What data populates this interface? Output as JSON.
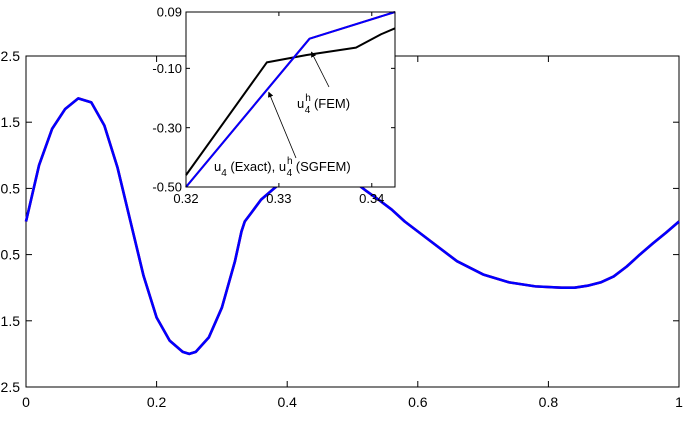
{
  "chart_data": [
    {
      "type": "line",
      "panel": "main",
      "xlim": [
        0,
        1
      ],
      "ylim": [
        -2.5,
        2.5
      ],
      "grid": false,
      "xticks": [
        {
          "value": 0,
          "label": "0"
        },
        {
          "value": 0.2,
          "label": "0.2"
        },
        {
          "value": 0.4,
          "label": "0.4"
        },
        {
          "value": 0.6,
          "label": "0.6"
        },
        {
          "value": 0.8,
          "label": "0.8"
        },
        {
          "value": 1,
          "label": "1"
        }
      ],
      "yticks": [
        {
          "value": 2.5,
          "label": "2.5"
        },
        {
          "value": 1.5,
          "label": "1.5"
        },
        {
          "value": 0.5,
          "label": "0.5"
        },
        {
          "value": -0.5,
          "label": "0.5"
        },
        {
          "value": -1.5,
          "label": "1.5"
        },
        {
          "value": -2.5,
          "label": "2.5"
        }
      ],
      "series": [
        {
          "color": "#ff0000",
          "points": [
            [
              0,
              0
            ],
            [
              0.02,
              0.85
            ],
            [
              0.04,
              1.4
            ],
            [
              0.06,
              1.7
            ],
            [
              0.08,
              1.86
            ],
            [
              0.1,
              1.8
            ],
            [
              0.12,
              1.45
            ],
            [
              0.14,
              0.82
            ],
            [
              0.16,
              0.0
            ],
            [
              0.18,
              -0.82
            ],
            [
              0.2,
              -1.45
            ],
            [
              0.22,
              -1.8
            ],
            [
              0.24,
              -1.97
            ],
            [
              0.25,
              -2.0
            ],
            [
              0.26,
              -1.97
            ],
            [
              0.28,
              -1.75
            ],
            [
              0.3,
              -1.3
            ],
            [
              0.32,
              -0.6
            ],
            [
              0.33,
              -0.15
            ],
            [
              0.335,
              0.0
            ],
            [
              0.345,
              0.13
            ],
            [
              0.36,
              0.33
            ],
            [
              0.38,
              0.5
            ],
            [
              0.4,
              0.66
            ],
            [
              0.42,
              0.8
            ],
            [
              0.44,
              0.83
            ],
            [
              0.46,
              0.8
            ],
            [
              0.48,
              0.72
            ],
            [
              0.5,
              0.62
            ],
            [
              0.52,
              0.47
            ],
            [
              0.54,
              0.33
            ],
            [
              0.56,
              0.18
            ],
            [
              0.58,
              0.0
            ],
            [
              0.62,
              -0.3
            ],
            [
              0.66,
              -0.6
            ],
            [
              0.7,
              -0.8
            ],
            [
              0.74,
              -0.92
            ],
            [
              0.78,
              -0.98
            ],
            [
              0.82,
              -1.0
            ],
            [
              0.84,
              -1.0
            ],
            [
              0.86,
              -0.97
            ],
            [
              0.88,
              -0.92
            ],
            [
              0.9,
              -0.83
            ],
            [
              0.92,
              -0.68
            ],
            [
              0.94,
              -0.5
            ],
            [
              0.96,
              -0.33
            ],
            [
              0.98,
              -0.17
            ],
            [
              1.0,
              0.0
            ]
          ]
        },
        {
          "color": "#0000ff",
          "points": [
            [
              0,
              0
            ],
            [
              0.02,
              0.85
            ],
            [
              0.04,
              1.4
            ],
            [
              0.06,
              1.7
            ],
            [
              0.08,
              1.86
            ],
            [
              0.1,
              1.8
            ],
            [
              0.12,
              1.45
            ],
            [
              0.14,
              0.82
            ],
            [
              0.16,
              0.0
            ],
            [
              0.18,
              -0.82
            ],
            [
              0.2,
              -1.45
            ],
            [
              0.22,
              -1.8
            ],
            [
              0.24,
              -1.97
            ],
            [
              0.25,
              -2.0
            ],
            [
              0.26,
              -1.97
            ],
            [
              0.28,
              -1.75
            ],
            [
              0.3,
              -1.3
            ],
            [
              0.32,
              -0.6
            ],
            [
              0.33,
              -0.15
            ],
            [
              0.335,
              0.0
            ],
            [
              0.345,
              0.13
            ],
            [
              0.36,
              0.33
            ],
            [
              0.38,
              0.5
            ],
            [
              0.4,
              0.66
            ],
            [
              0.42,
              0.8
            ],
            [
              0.44,
              0.83
            ],
            [
              0.46,
              0.8
            ],
            [
              0.48,
              0.72
            ],
            [
              0.5,
              0.62
            ],
            [
              0.52,
              0.47
            ],
            [
              0.54,
              0.33
            ],
            [
              0.56,
              0.18
            ],
            [
              0.58,
              0.0
            ],
            [
              0.62,
              -0.3
            ],
            [
              0.66,
              -0.6
            ],
            [
              0.7,
              -0.8
            ],
            [
              0.74,
              -0.92
            ],
            [
              0.78,
              -0.98
            ],
            [
              0.82,
              -1.0
            ],
            [
              0.84,
              -1.0
            ],
            [
              0.86,
              -0.97
            ],
            [
              0.88,
              -0.92
            ],
            [
              0.9,
              -0.83
            ],
            [
              0.92,
              -0.68
            ],
            [
              0.94,
              -0.5
            ],
            [
              0.96,
              -0.33
            ],
            [
              0.98,
              -0.17
            ],
            [
              1.0,
              0.0
            ]
          ]
        }
      ]
    },
    {
      "type": "line",
      "panel": "inset",
      "xlim": [
        0.32,
        0.3425
      ],
      "ylim": [
        -0.5,
        0.09
      ],
      "grid": false,
      "xticks": [
        {
          "value": 0.32,
          "label": "0.32"
        },
        {
          "value": 0.33,
          "label": "0.33"
        },
        {
          "value": 0.34,
          "label": "0.34"
        }
      ],
      "yticks": [
        {
          "value": 0.09,
          "label": "0.09"
        },
        {
          "value": -0.1,
          "label": "-0.10"
        },
        {
          "value": -0.3,
          "label": "-0.30"
        },
        {
          "value": -0.5,
          "label": "-0.50"
        }
      ],
      "series": [
        {
          "color": "#000000",
          "points": [
            [
              0.32,
              -0.46
            ],
            [
              0.3287,
              -0.08
            ],
            [
              0.333,
              -0.055
            ],
            [
              0.3383,
              -0.03
            ],
            [
              0.341,
              0.015
            ],
            [
              0.3425,
              0.035
            ]
          ]
        },
        {
          "color": "#ff0000",
          "points": [
            [
              0.32,
              -0.5
            ],
            [
              0.3333,
              0.0
            ],
            [
              0.3425,
              0.09
            ]
          ]
        },
        {
          "color": "#0000ff",
          "points": [
            [
              0.32,
              -0.5
            ],
            [
              0.3333,
              0.0
            ],
            [
              0.3425,
              0.09
            ]
          ]
        }
      ],
      "annotations": [
        {
          "main": "u",
          "sup": "h",
          "sub": "4",
          "suffix": " (FEM)",
          "target": [
            0.3335,
            -0.045
          ]
        },
        {
          "main": "u",
          "sub": "4",
          "middle": " (Exact), ",
          "main2": "u",
          "sup2": "h",
          "sub2": "4",
          "suffix": " (SGFEM)",
          "target": [
            0.3289,
            -0.18
          ]
        }
      ]
    }
  ]
}
